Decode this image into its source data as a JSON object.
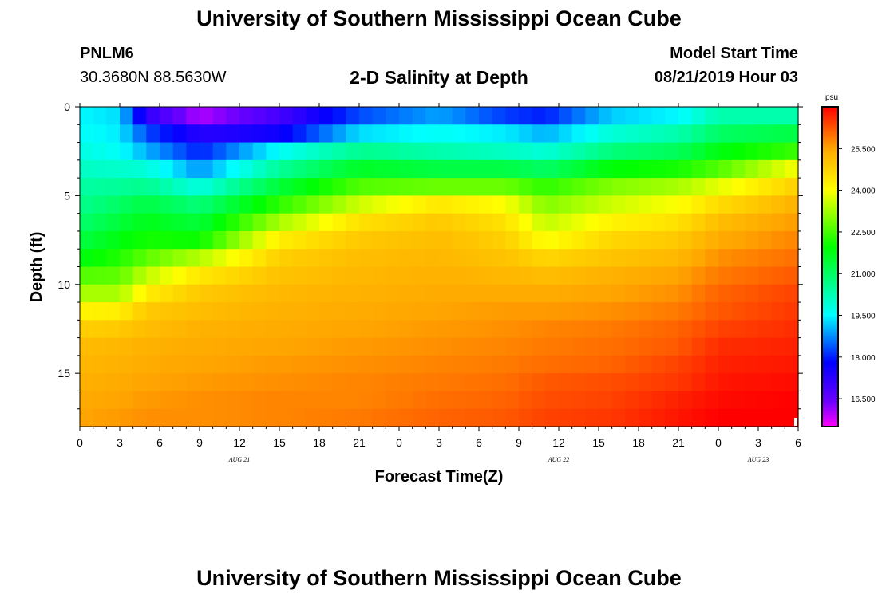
{
  "page": {
    "title": "University of Southern Mississippi Ocean Cube",
    "footer_title": "University of Southern Mississippi Ocean Cube"
  },
  "header": {
    "station_id": "PNLM6",
    "coordinates": "30.3680N 88.5630W",
    "plot_title": "2-D Salinity at Depth",
    "model_start_label": "Model Start Time",
    "model_start_value": "08/21/2019 Hour 03"
  },
  "colors": {
    "ramp": [
      "#ff00ff",
      "#6a00ff",
      "#0000ff",
      "#00ffff",
      "#00ff00",
      "#ffff00",
      "#ffa500",
      "#ff0000"
    ]
  },
  "chart_data": {
    "type": "heatmap",
    "title": "2-D Salinity at Depth",
    "xlabel": "Forecast Time(Z)",
    "ylabel": "Depth (ft)",
    "unit": "psu",
    "x_range_hours": [
      0,
      54
    ],
    "x_ticks": [
      0,
      3,
      6,
      9,
      12,
      15,
      18,
      21,
      24,
      27,
      30,
      33,
      36,
      39,
      42,
      45,
      48,
      51,
      54
    ],
    "x_tick_labels": [
      "0",
      "3",
      "6",
      "9",
      "12",
      "15",
      "18",
      "21",
      "0",
      "3",
      "6",
      "9",
      "12",
      "15",
      "18",
      "21",
      "0",
      "3",
      "6"
    ],
    "day_labels": [
      {
        "label": "AUG 21",
        "hour": 12
      },
      {
        "label": "AUG 22",
        "hour": 36
      },
      {
        "label": "AUG 23",
        "hour": 51
      }
    ],
    "ylim": [
      0,
      18
    ],
    "y_ticks": [
      0,
      5,
      10,
      15
    ],
    "y_tick_labels": [
      "0",
      "5",
      "10",
      "15"
    ],
    "colorbar": {
      "unit_label": "psu",
      "range": [
        15.5,
        27.0
      ],
      "ticks": [
        16.5,
        18.0,
        19.5,
        21.0,
        22.5,
        24.0,
        25.5
      ],
      "tick_labels": [
        "16.500",
        "18.000",
        "19.500",
        "21.000",
        "22.500",
        "24.000",
        "25.500"
      ]
    },
    "depth_levels_ft": [
      0,
      1,
      2,
      3,
      4,
      5,
      6,
      7,
      8,
      9,
      10,
      11,
      12,
      13,
      14,
      15,
      16,
      17
    ],
    "salinity_profiles": [
      {
        "hour": 0,
        "values": [
          19.5,
          19.6,
          19.8,
          20.1,
          20.4,
          20.6,
          20.9,
          21.3,
          21.8,
          22.6,
          23.3,
          24.2,
          24.8,
          25.1,
          25.2,
          25.3,
          25.4,
          25.5
        ]
      },
      {
        "hour": 3,
        "values": [
          19.3,
          19.4,
          19.6,
          20.0,
          20.5,
          21.0,
          21.4,
          21.8,
          22.2,
          22.7,
          23.3,
          24.3,
          24.9,
          25.2,
          25.3,
          25.4,
          25.5,
          25.6
        ]
      },
      {
        "hour": 5,
        "values": [
          17.2,
          18.3,
          19.0,
          19.9,
          20.6,
          21.3,
          21.7,
          22.1,
          22.7,
          23.5,
          24.3,
          24.9,
          25.1,
          25.3,
          25.4,
          25.5,
          25.6,
          25.7
        ]
      },
      {
        "hour": 9,
        "values": [
          16.0,
          17.3,
          18.0,
          18.8,
          19.8,
          20.8,
          21.4,
          22.0,
          23.4,
          24.4,
          24.9,
          25.1,
          25.3,
          25.4,
          25.5,
          25.6,
          25.7,
          25.7
        ]
      },
      {
        "hour": 15,
        "values": [
          16.9,
          17.6,
          19.6,
          20.5,
          21.4,
          22.3,
          23.3,
          24.3,
          24.8,
          25.0,
          25.2,
          25.3,
          25.4,
          25.5,
          25.6,
          25.7,
          25.8,
          25.8
        ]
      },
      {
        "hour": 21,
        "values": [
          18.3,
          19.3,
          20.6,
          21.6,
          22.6,
          23.6,
          24.5,
          24.9,
          25.1,
          25.2,
          25.3,
          25.4,
          25.5,
          25.6,
          25.7,
          25.8,
          25.8,
          25.9
        ]
      },
      {
        "hour": 27,
        "values": [
          18.9,
          19.6,
          20.3,
          21.3,
          22.8,
          24.4,
          24.9,
          25.1,
          25.2,
          25.3,
          25.4,
          25.5,
          25.6,
          25.7,
          25.8,
          25.9,
          26.0,
          26.1
        ]
      },
      {
        "hour": 32,
        "values": [
          18.2,
          19.4,
          20.1,
          21.3,
          22.8,
          24.0,
          24.5,
          24.8,
          25.0,
          25.2,
          25.4,
          25.6,
          25.7,
          25.8,
          25.9,
          26.0,
          26.1,
          26.2
        ]
      },
      {
        "hour": 35,
        "values": [
          18.0,
          19.0,
          19.9,
          21.0,
          22.3,
          23.0,
          23.5,
          24.0,
          24.7,
          25.1,
          25.4,
          25.6,
          25.8,
          25.9,
          26.0,
          26.2,
          26.3,
          26.4
        ]
      },
      {
        "hour": 40,
        "values": [
          19.2,
          19.9,
          20.8,
          21.9,
          23.0,
          23.6,
          24.2,
          24.7,
          25.0,
          25.3,
          25.5,
          25.7,
          25.9,
          26.0,
          26.1,
          26.3,
          26.4,
          26.5
        ]
      },
      {
        "hour": 45,
        "values": [
          19.5,
          20.3,
          21.1,
          22.1,
          23.3,
          24.0,
          24.5,
          24.9,
          25.2,
          25.5,
          25.7,
          25.9,
          26.1,
          26.2,
          26.4,
          26.5,
          26.7,
          26.8
        ]
      },
      {
        "hour": 48,
        "values": [
          20.3,
          21.0,
          21.8,
          22.6,
          23.8,
          24.6,
          25.1,
          25.4,
          25.7,
          25.9,
          26.1,
          26.2,
          26.4,
          26.6,
          26.7,
          26.8,
          26.9,
          27.0
        ]
      },
      {
        "hour": 54,
        "values": [
          20.3,
          21.3,
          22.4,
          24.0,
          24.8,
          25.3,
          25.6,
          25.8,
          26.0,
          26.2,
          26.4,
          26.5,
          26.6,
          26.7,
          26.8,
          26.9,
          27.0,
          27.0
        ]
      }
    ]
  }
}
